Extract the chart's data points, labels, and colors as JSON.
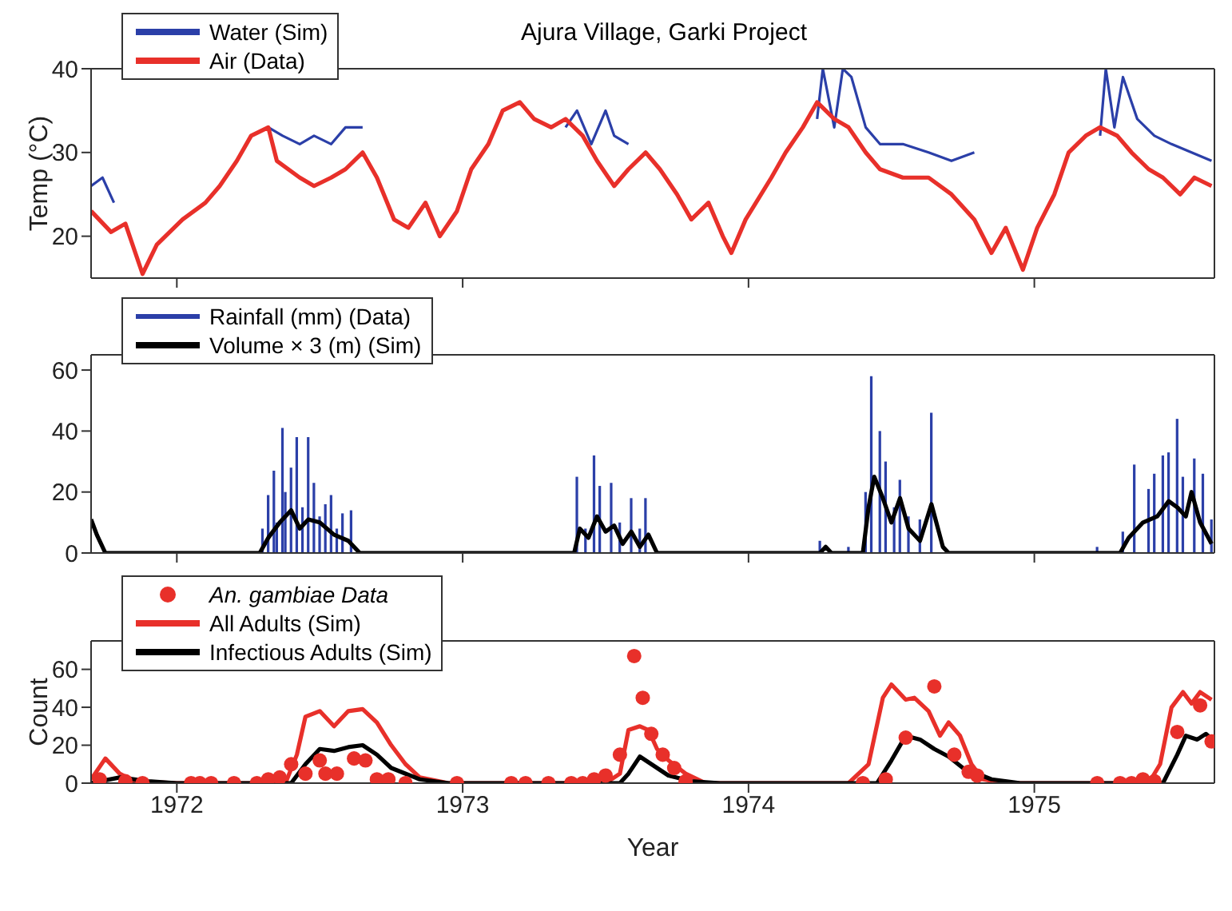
{
  "chart_data": [
    {
      "type": "line",
      "title": "Ajura Village, Garki Project",
      "ylabel": "Temp (°C)",
      "xlim": [
        1971.7,
        1975.63
      ],
      "xticks": [
        1972,
        1973,
        1974,
        1975
      ],
      "ylim": [
        15,
        40
      ],
      "yticks": [
        20,
        30,
        40
      ],
      "tick_labels": "y",
      "legend": "top left",
      "grid": false,
      "series": [
        {
          "name": "Water (Sim)",
          "color": "#2b3fa8",
          "x": [
            1971.7,
            1971.74,
            1971.78,
            1971.8,
            1972.32,
            1972.37,
            1972.43,
            1972.48,
            1972.54,
            1972.59,
            1972.65,
            1972.67,
            1973.36,
            1973.4,
            1973.45,
            1973.5,
            1973.53,
            1973.58,
            1973.6,
            1974.24,
            1974.26,
            1974.3,
            1974.33,
            1974.36,
            1974.41,
            1974.46,
            1974.54,
            1974.63,
            1974.71,
            1974.79,
            1974.81,
            1975.23,
            1975.25,
            1975.28,
            1975.31,
            1975.36,
            1975.42,
            1975.48,
            1975.55,
            1975.62
          ],
          "values": [
            26,
            27,
            24,
            null,
            33,
            32,
            31,
            32,
            31,
            33,
            33,
            null,
            33,
            35,
            31,
            35,
            32,
            31,
            null,
            34,
            40,
            33,
            40,
            39,
            33,
            31,
            31,
            30,
            29,
            30,
            null,
            32,
            40,
            33,
            39,
            34,
            32,
            31,
            30,
            29
          ]
        },
        {
          "name": "Air (Data)",
          "color": "#e8302a",
          "x": [
            1971.7,
            1971.77,
            1971.82,
            1971.88,
            1971.93,
            1972.02,
            1972.1,
            1972.15,
            1972.21,
            1972.26,
            1972.32,
            1972.35,
            1972.43,
            1972.48,
            1972.54,
            1972.59,
            1972.65,
            1972.7,
            1972.76,
            1972.81,
            1972.87,
            1972.92,
            1972.98,
            1973.03,
            1973.09,
            1973.14,
            1973.2,
            1973.25,
            1973.31,
            1973.36,
            1973.42,
            1973.47,
            1973.53,
            1973.58,
            1973.64,
            1973.69,
            1973.75,
            1973.8,
            1973.86,
            1973.91,
            1973.94,
            1973.99,
            1974.08,
            1974.13,
            1974.19,
            1974.24,
            1974.3,
            1974.35,
            1974.41,
            1974.46,
            1974.54,
            1974.63,
            1974.71,
            1974.79,
            1974.85,
            1974.9,
            1974.96,
            1975.01,
            1975.07,
            1975.12,
            1975.18,
            1975.23,
            1975.29,
            1975.34,
            1975.4,
            1975.45,
            1975.51,
            1975.56,
            1975.62
          ],
          "values": [
            23,
            20.5,
            21.5,
            15.5,
            19,
            22,
            24,
            26,
            29,
            32,
            33,
            29,
            27,
            26,
            27,
            28,
            30,
            27,
            22,
            21,
            24,
            20,
            23,
            28,
            31,
            35,
            36,
            34,
            33,
            34,
            32,
            29,
            26,
            28,
            30,
            28,
            25,
            22,
            24,
            20,
            18,
            22,
            27,
            30,
            33,
            36,
            34,
            33,
            30,
            28,
            27,
            27,
            25,
            22,
            18,
            21,
            16,
            21,
            25,
            30,
            32,
            33,
            32,
            30,
            28,
            27,
            25,
            27,
            26
          ]
        }
      ]
    },
    {
      "type": "line",
      "xlim": [
        1971.7,
        1975.63
      ],
      "xticks": [
        1972,
        1973,
        1974,
        1975
      ],
      "ylim": [
        0,
        65
      ],
      "yticks": [
        0,
        20,
        40,
        60
      ],
      "tick_labels": "y",
      "legend": "top left",
      "grid": false,
      "series": [
        {
          "name": "Rainfall (mm) (Data)",
          "type": "bar",
          "color": "#2b3fa8",
          "x": [
            1972.3,
            1972.32,
            1972.34,
            1972.35,
            1972.37,
            1972.38,
            1972.4,
            1972.42,
            1972.44,
            1972.46,
            1972.48,
            1972.5,
            1972.52,
            1972.54,
            1972.56,
            1972.58,
            1972.61,
            1973.4,
            1973.43,
            1973.46,
            1973.48,
            1973.52,
            1973.55,
            1973.59,
            1973.62,
            1973.64,
            1974.25,
            1974.35,
            1974.41,
            1974.43,
            1974.46,
            1974.48,
            1974.51,
            1974.53,
            1974.56,
            1974.6,
            1974.64,
            1975.22,
            1975.31,
            1975.35,
            1975.4,
            1975.42,
            1975.45,
            1975.47,
            1975.5,
            1975.52,
            1975.56,
            1975.59,
            1975.62
          ],
          "values": [
            8,
            19,
            27,
            10,
            41,
            20,
            28,
            38,
            15,
            38,
            23,
            12,
            16,
            19,
            8,
            13,
            14,
            25,
            8,
            32,
            22,
            23,
            10,
            18,
            8,
            18,
            4,
            2,
            20,
            58,
            40,
            30,
            15,
            24,
            12,
            11,
            46,
            2,
            7,
            29,
            21,
            26,
            32,
            33,
            44,
            25,
            31,
            26,
            11
          ]
        },
        {
          "name": "Volume × 3 (m) (Sim)",
          "color": "#000000",
          "x": [
            1971.7,
            1971.72,
            1971.75,
            1972.29,
            1972.32,
            1972.36,
            1972.4,
            1972.43,
            1972.46,
            1972.5,
            1972.55,
            1972.6,
            1972.64,
            1973.39,
            1973.41,
            1973.44,
            1973.47,
            1973.5,
            1973.53,
            1973.56,
            1973.59,
            1973.62,
            1973.65,
            1973.68,
            1974.25,
            1974.27,
            1974.29,
            1974.4,
            1974.42,
            1974.44,
            1974.47,
            1974.5,
            1974.53,
            1974.56,
            1974.6,
            1974.64,
            1974.68,
            1974.7,
            1975.3,
            1975.33,
            1975.38,
            1975.43,
            1975.47,
            1975.5,
            1975.53,
            1975.55,
            1975.58,
            1975.62
          ],
          "values": [
            11,
            6,
            0,
            0,
            5,
            10,
            14,
            8,
            11,
            10,
            6,
            4,
            0,
            0,
            8,
            5,
            12,
            7,
            9,
            3,
            7,
            2,
            6,
            0,
            0,
            2,
            0,
            0,
            15,
            25,
            18,
            10,
            18,
            8,
            4,
            16,
            2,
            0,
            0,
            5,
            10,
            12,
            17,
            15,
            12,
            20,
            10,
            3
          ]
        }
      ]
    },
    {
      "type": "line",
      "xlabel": "Year",
      "ylabel": "Count",
      "xlim": [
        1971.7,
        1975.63
      ],
      "xticks": [
        1972,
        1973,
        1974,
        1975
      ],
      "ylim": [
        0,
        75
      ],
      "yticks": [
        0,
        20,
        40,
        60
      ],
      "legend": "top left",
      "grid": false,
      "series": [
        {
          "name": "An. gambiae Data",
          "type": "scatter",
          "marker": "circle",
          "color": "#e8302a",
          "x": [
            1971.73,
            1971.82,
            1971.88,
            1972.05,
            1972.08,
            1972.12,
            1972.2,
            1972.28,
            1972.32,
            1972.36,
            1972.4,
            1972.45,
            1972.5,
            1972.52,
            1972.56,
            1972.62,
            1972.66,
            1972.7,
            1972.74,
            1972.8,
            1972.98,
            1973.17,
            1973.22,
            1973.3,
            1973.38,
            1973.42,
            1973.46,
            1973.5,
            1973.55,
            1973.6,
            1973.63,
            1973.66,
            1973.7,
            1973.74,
            1973.78,
            1974.4,
            1974.48,
            1974.55,
            1974.65,
            1974.72,
            1974.77,
            1974.8,
            1975.22,
            1975.3,
            1975.34,
            1975.38,
            1975.42,
            1975.5,
            1975.58,
            1975.62
          ],
          "values": [
            2,
            1,
            0,
            0,
            0,
            0,
            0,
            0,
            2,
            3,
            10,
            5,
            12,
            5,
            5,
            13,
            12,
            2,
            2,
            0,
            0,
            0,
            0,
            0,
            0,
            0,
            2,
            4,
            15,
            67,
            45,
            26,
            15,
            8,
            1,
            0,
            2,
            24,
            51,
            15,
            6,
            4,
            0,
            0,
            0,
            2,
            1,
            27,
            41,
            22
          ]
        },
        {
          "name": "All Adults (Sim)",
          "color": "#e8302a",
          "x": [
            1971.7,
            1971.75,
            1971.8,
            1971.85,
            1972.0,
            1972.38,
            1972.42,
            1972.45,
            1972.5,
            1972.55,
            1972.6,
            1972.65,
            1972.7,
            1972.75,
            1972.8,
            1972.85,
            1972.95,
            1973.5,
            1973.55,
            1973.58,
            1973.62,
            1973.65,
            1973.68,
            1973.72,
            1973.78,
            1973.85,
            1974.35,
            1974.42,
            1974.47,
            1974.5,
            1974.55,
            1974.58,
            1974.63,
            1974.67,
            1974.7,
            1974.74,
            1974.78,
            1974.82,
            1974.9,
            1975.4,
            1975.44,
            1975.48,
            1975.52,
            1975.55,
            1975.58,
            1975.62
          ],
          "values": [
            2,
            13,
            5,
            1,
            0,
            0,
            15,
            35,
            38,
            30,
            38,
            39,
            32,
            20,
            10,
            3,
            0,
            0,
            5,
            28,
            30,
            28,
            18,
            12,
            5,
            0,
            0,
            10,
            45,
            52,
            44,
            45,
            38,
            25,
            32,
            25,
            10,
            2,
            0,
            0,
            10,
            40,
            48,
            42,
            48,
            44
          ]
        },
        {
          "name": "Infectious Adults (Sim)",
          "color": "#000000",
          "x": [
            1971.7,
            1971.8,
            1971.9,
            1972.0,
            1972.4,
            1972.45,
            1972.5,
            1972.55,
            1972.6,
            1972.65,
            1972.7,
            1972.75,
            1972.85,
            1972.95,
            1973.55,
            1973.58,
            1973.62,
            1973.66,
            1973.72,
            1973.8,
            1973.9,
            1974.45,
            1974.5,
            1974.55,
            1974.6,
            1974.65,
            1974.7,
            1974.75,
            1974.85,
            1974.95,
            1975.45,
            1975.5,
            1975.53,
            1975.57,
            1975.6,
            1975.63
          ],
          "values": [
            0,
            3,
            1,
            0,
            0,
            10,
            18,
            17,
            19,
            20,
            15,
            8,
            2,
            0,
            0,
            5,
            14,
            10,
            4,
            1,
            0,
            0,
            12,
            25,
            23,
            18,
            14,
            8,
            2,
            0,
            0,
            15,
            25,
            23,
            26,
            22
          ]
        }
      ]
    }
  ]
}
